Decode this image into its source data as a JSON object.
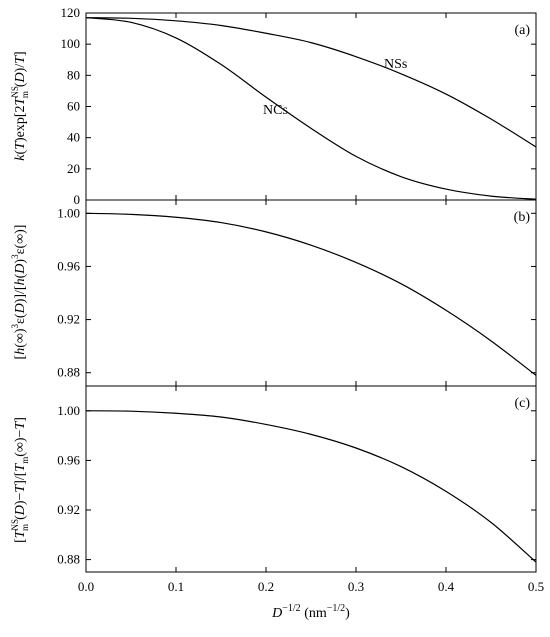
{
  "chart_data": [
    {
      "type": "line",
      "panel_tag": "(a)",
      "x": [
        0.0,
        0.05,
        0.1,
        0.15,
        0.2,
        0.25,
        0.3,
        0.35,
        0.4,
        0.45,
        0.5
      ],
      "series": [
        {
          "name": "NSs",
          "values": [
            117,
            116.6,
            115,
            112,
            107,
            101,
            92,
            81,
            68,
            52,
            34
          ]
        },
        {
          "name": "NCs",
          "values": [
            117,
            114,
            104,
            87,
            66,
            46,
            28,
            15,
            7,
            2.5,
            0.5
          ]
        }
      ],
      "xlim": [
        0,
        0.5
      ],
      "ylim": [
        0,
        120
      ],
      "y_ticks": [
        "0",
        "20",
        "40",
        "60",
        "80",
        "100",
        "120"
      ]
    },
    {
      "type": "line",
      "panel_tag": "(b)",
      "x": [
        0.0,
        0.05,
        0.1,
        0.15,
        0.2,
        0.25,
        0.3,
        0.35,
        0.4,
        0.45,
        0.5
      ],
      "series": [
        {
          "values": [
            1.0,
            0.9992,
            0.997,
            0.993,
            0.986,
            0.976,
            0.963,
            0.947,
            0.927,
            0.904,
            0.878
          ]
        }
      ],
      "xlim": [
        0,
        0.5
      ],
      "ylim": [
        0.87,
        1.01
      ],
      "y_ticks": [
        "0.88",
        "0.92",
        "0.96",
        "1.00"
      ]
    },
    {
      "type": "line",
      "panel_tag": "(c)",
      "x": [
        0.0,
        0.05,
        0.1,
        0.15,
        0.2,
        0.25,
        0.3,
        0.35,
        0.4,
        0.45,
        0.5
      ],
      "series": [
        {
          "values": [
            1.0,
            0.9997,
            0.998,
            0.995,
            0.989,
            0.981,
            0.97,
            0.955,
            0.935,
            0.91,
            0.878
          ]
        }
      ],
      "xlim": [
        0,
        0.5
      ],
      "ylim": [
        0.87,
        1.02
      ],
      "y_ticks": [
        "0.88",
        "0.92",
        "0.96",
        "1.00"
      ]
    }
  ],
  "x_ticks": [
    "0.0",
    "0.1",
    "0.2",
    "0.3",
    "0.4",
    "0.5"
  ],
  "labels": {
    "xlabel_main": "D",
    "xlabel_exp": "−1/2",
    "xlabel_unit_open": " (nm",
    "xlabel_unit_exp": "−1/2",
    "xlabel_unit_close": ")",
    "a_k": "k",
    "a_paren_T1": "(",
    "a_T1": "T",
    "a_mid": ")exp[2",
    "a_T2": "T",
    "a_sup": "NS",
    "a_sub": "m",
    "a_paren_D": "(",
    "a_D": "D",
    "a_slash": ")/",
    "a_T3": "T",
    "a_close": "]",
    "b_open": "[",
    "b_h1": "h",
    "b_inf1": "(∞)",
    "b_sup3a": "3",
    "b_eps1": "ε(",
    "b_D1": "D",
    "b_close1": ")]/[",
    "b_h2": "h",
    "b_paren2": "(",
    "b_D2": "D",
    "b_close2": ")",
    "b_sup3b": "3",
    "b_eps2": "ε(∞)]",
    "c_open": "[",
    "c_T1": "T",
    "c_sup": "NS",
    "c_sub": "m",
    "c_paren1": "(",
    "c_D": "D",
    "c_mid": ")−",
    "c_T2": "T",
    "c_div": "]/[",
    "c_T3": "T",
    "c_sub2": "m",
    "c_inf": "(∞)−",
    "c_T4": "T",
    "c_close": "]"
  }
}
